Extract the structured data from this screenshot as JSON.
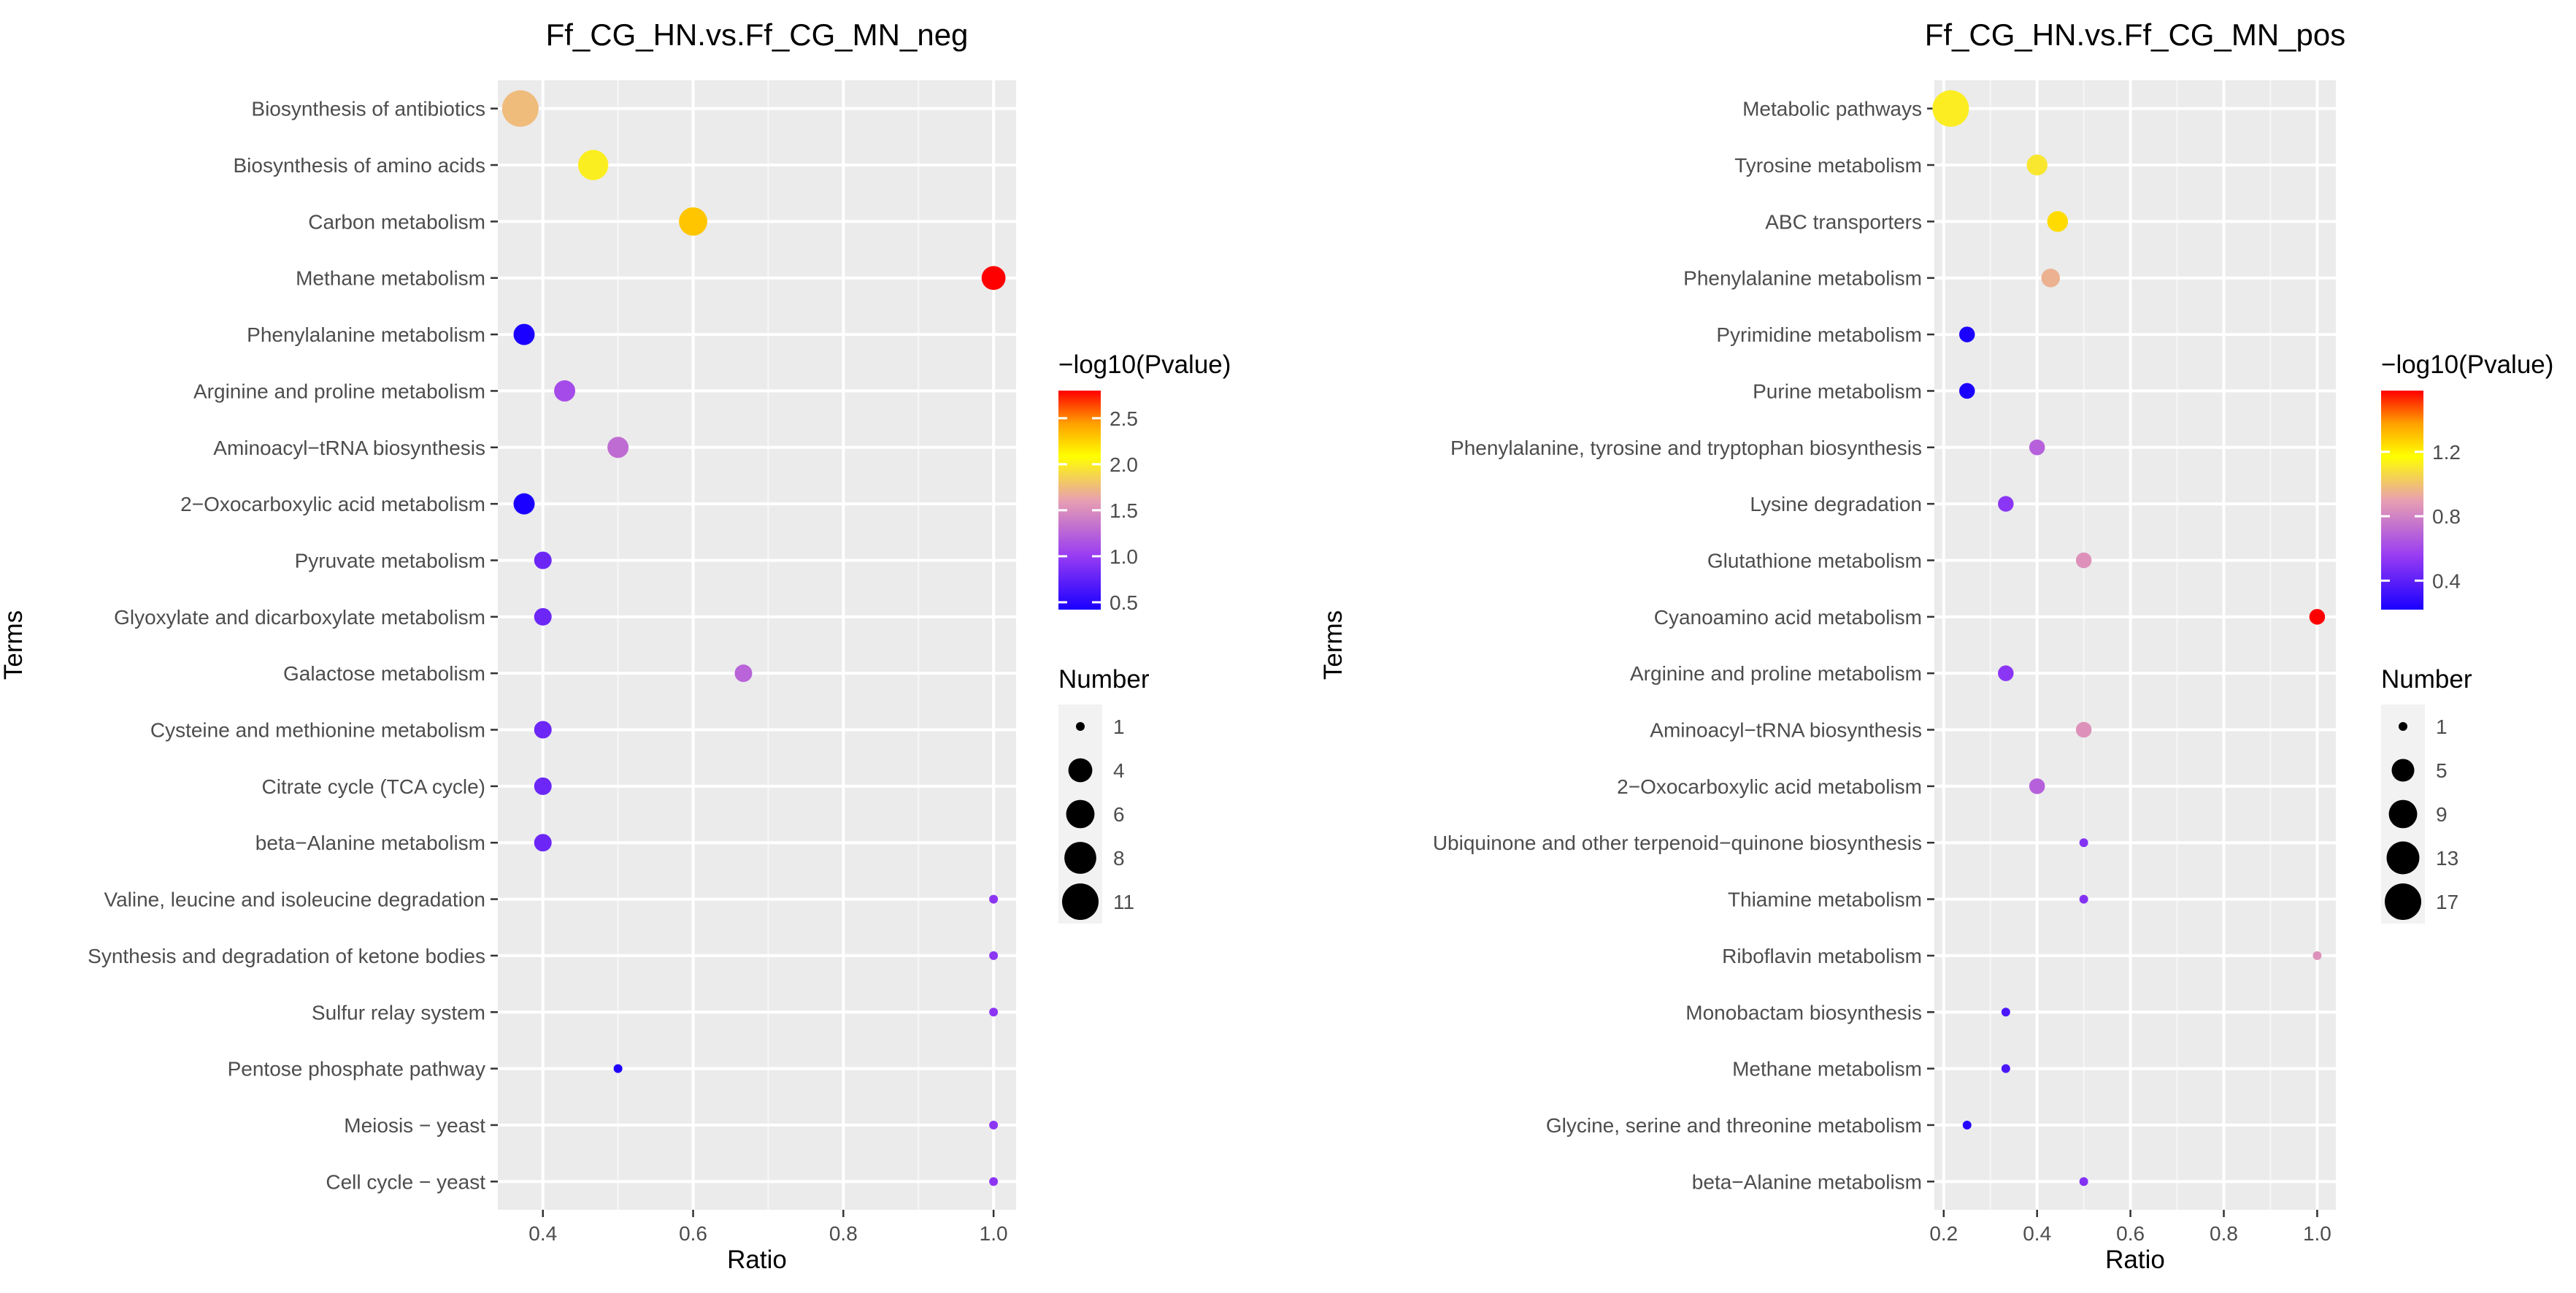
{
  "chart_data": [
    {
      "type": "scatter",
      "title": "Ff_CG_HN.vs.Ff_CG_MN_neg",
      "xlabel": "Ratio",
      "ylabel": "Terms",
      "xlim": [
        0.34,
        1.03
      ],
      "xticks": [
        0.4,
        0.6,
        0.8,
        1.0
      ],
      "xtick_labels": [
        "0.4",
        "0.6",
        "0.8",
        "1.0"
      ],
      "color_legend": {
        "title": "−log10(Pvalue)",
        "min": 0.42,
        "max": 2.8,
        "ticks": [
          0.5,
          1.0,
          1.5,
          2.0,
          2.5
        ],
        "tick_labels": [
          "0.5",
          "1.0",
          "1.5",
          "2.0",
          "2.5"
        ]
      },
      "size_legend": {
        "title": "Number",
        "min": 1,
        "max": 11,
        "values": [
          1,
          4,
          6,
          8,
          11
        ],
        "labels": [
          "1",
          "4",
          "6",
          "8",
          "11"
        ]
      },
      "grid": true,
      "legend_position": "right",
      "points": [
        {
          "term": "Biosynthesis of antibiotics",
          "ratio": 0.37,
          "pvalue_log": 1.75,
          "number": 11
        },
        {
          "term": "Biosynthesis of amino acids",
          "ratio": 0.467,
          "pvalue_log": 2.0,
          "number": 7
        },
        {
          "term": "Carbon metabolism",
          "ratio": 0.6,
          "pvalue_log": 2.3,
          "number": 6
        },
        {
          "term": "Methane metabolism",
          "ratio": 1.0,
          "pvalue_log": 2.8,
          "number": 4
        },
        {
          "term": "Phenylalanine metabolism",
          "ratio": 0.375,
          "pvalue_log": 0.42,
          "number": 3
        },
        {
          "term": "Arginine and proline metabolism",
          "ratio": 0.429,
          "pvalue_log": 1.1,
          "number": 3
        },
        {
          "term": "Aminoacyl−tRNA biosynthesis",
          "ratio": 0.5,
          "pvalue_log": 1.3,
          "number": 3
        },
        {
          "term": "2−Oxocarboxylic acid metabolism",
          "ratio": 0.375,
          "pvalue_log": 0.42,
          "number": 3
        },
        {
          "term": "Pyruvate metabolism",
          "ratio": 0.4,
          "pvalue_log": 0.8,
          "number": 2
        },
        {
          "term": "Glyoxylate and dicarboxylate metabolism",
          "ratio": 0.4,
          "pvalue_log": 0.8,
          "number": 2
        },
        {
          "term": "Galactose metabolism",
          "ratio": 0.667,
          "pvalue_log": 1.25,
          "number": 2
        },
        {
          "term": "Cysteine and methionine metabolism",
          "ratio": 0.4,
          "pvalue_log": 0.8,
          "number": 2
        },
        {
          "term": "Citrate cycle (TCA cycle)",
          "ratio": 0.4,
          "pvalue_log": 0.8,
          "number": 2
        },
        {
          "term": "beta−Alanine metabolism",
          "ratio": 0.4,
          "pvalue_log": 0.8,
          "number": 2
        },
        {
          "term": "Valine, leucine and isoleucine degradation",
          "ratio": 1.0,
          "pvalue_log": 0.95,
          "number": 1
        },
        {
          "term": "Synthesis and degradation of ketone bodies",
          "ratio": 1.0,
          "pvalue_log": 0.95,
          "number": 1
        },
        {
          "term": "Sulfur relay system",
          "ratio": 1.0,
          "pvalue_log": 0.95,
          "number": 1
        },
        {
          "term": "Pentose phosphate pathway",
          "ratio": 0.5,
          "pvalue_log": 0.45,
          "number": 1
        },
        {
          "term": "Meiosis − yeast",
          "ratio": 1.0,
          "pvalue_log": 0.95,
          "number": 1
        },
        {
          "term": "Cell cycle − yeast",
          "ratio": 1.0,
          "pvalue_log": 0.95,
          "number": 1
        }
      ]
    },
    {
      "type": "scatter",
      "title": "Ff_CG_HN.vs.Ff_CG_MN_pos",
      "xlabel": "Ratio",
      "ylabel": "Terms",
      "xlim": [
        0.18,
        1.04
      ],
      "xticks": [
        0.2,
        0.4,
        0.6,
        0.8,
        1.0
      ],
      "xtick_labels": [
        "0.2",
        "0.4",
        "0.6",
        "0.8",
        "1.0"
      ],
      "color_legend": {
        "title": "−log10(Pvalue)",
        "min": 0.22,
        "max": 1.58,
        "ticks": [
          0.4,
          0.8,
          1.2
        ],
        "tick_labels": [
          "0.4",
          "0.8",
          "1.2"
        ]
      },
      "size_legend": {
        "title": "Number",
        "min": 1,
        "max": 17,
        "values": [
          1,
          5,
          9,
          13,
          17
        ],
        "labels": [
          "1",
          "5",
          "9",
          "13",
          "17"
        ]
      },
      "grid": true,
      "legend_position": "right",
      "points": [
        {
          "term": "Metabolic pathways",
          "ratio": 0.215,
          "pvalue_log": 1.12,
          "number": 17
        },
        {
          "term": "Tyrosine metabolism",
          "ratio": 0.4,
          "pvalue_log": 1.1,
          "number": 4
        },
        {
          "term": "ABC transporters",
          "ratio": 0.444,
          "pvalue_log": 1.25,
          "number": 4
        },
        {
          "term": "Phenylalanine metabolism",
          "ratio": 0.429,
          "pvalue_log": 0.95,
          "number": 3
        },
        {
          "term": "Pyrimidine metabolism",
          "ratio": 0.25,
          "pvalue_log": 0.22,
          "number": 2
        },
        {
          "term": "Purine metabolism",
          "ratio": 0.25,
          "pvalue_log": 0.22,
          "number": 2
        },
        {
          "term": "Phenylalanine, tyrosine and tryptophan biosynthesis",
          "ratio": 0.4,
          "pvalue_log": 0.68,
          "number": 2
        },
        {
          "term": "Lysine degradation",
          "ratio": 0.333,
          "pvalue_log": 0.52,
          "number": 2
        },
        {
          "term": "Glutathione metabolism",
          "ratio": 0.5,
          "pvalue_log": 0.85,
          "number": 2
        },
        {
          "term": "Cyanoamino acid metabolism",
          "ratio": 1.0,
          "pvalue_log": 1.58,
          "number": 2
        },
        {
          "term": "Arginine and proline metabolism",
          "ratio": 0.333,
          "pvalue_log": 0.52,
          "number": 2
        },
        {
          "term": "Aminoacyl−tRNA biosynthesis",
          "ratio": 0.5,
          "pvalue_log": 0.85,
          "number": 2
        },
        {
          "term": "2−Oxocarboxylic acid metabolism",
          "ratio": 0.4,
          "pvalue_log": 0.68,
          "number": 2
        },
        {
          "term": "Ubiquinone and other terpenoid−quinone biosynthesis",
          "ratio": 0.5,
          "pvalue_log": 0.5,
          "number": 1
        },
        {
          "term": "Thiamine metabolism",
          "ratio": 0.5,
          "pvalue_log": 0.5,
          "number": 1
        },
        {
          "term": "Riboflavin metabolism",
          "ratio": 1.0,
          "pvalue_log": 0.85,
          "number": 1
        },
        {
          "term": "Monobactam biosynthesis",
          "ratio": 0.333,
          "pvalue_log": 0.35,
          "number": 1
        },
        {
          "term": "Methane metabolism",
          "ratio": 0.333,
          "pvalue_log": 0.35,
          "number": 1
        },
        {
          "term": "Glycine, serine and threonine metabolism",
          "ratio": 0.25,
          "pvalue_log": 0.25,
          "number": 1
        },
        {
          "term": "beta−Alanine metabolism",
          "ratio": 0.5,
          "pvalue_log": 0.5,
          "number": 1
        }
      ]
    }
  ]
}
